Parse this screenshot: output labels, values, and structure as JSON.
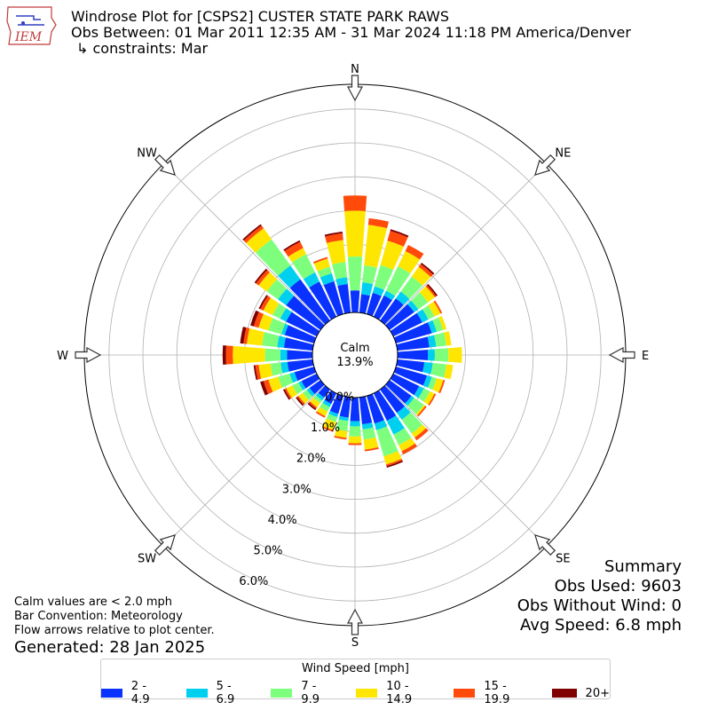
{
  "header": {
    "title": "Windrose Plot for [CSPS2] CUSTER STATE PARK RAWS",
    "subtitle": "Obs Between: 01 Mar 2011 12:35 AM - 31 Mar 2024 11:18 PM America/Denver",
    "constraints": "↳ constraints: Mar",
    "logo_text": "IEM"
  },
  "notes": {
    "calm_note": "Calm values are < 2.0 mph",
    "bar_convention": "Bar Convention: Meteorology",
    "flow_arrows": "Flow arrows relative to plot center.",
    "generated": "Generated: 28 Jan 2025"
  },
  "summary": {
    "heading": "Summary",
    "obs_used": "Obs Used: 9603",
    "obs_without_wind": "Obs Without Wind: 0",
    "avg_speed": "Avg Speed: 6.8 mph"
  },
  "legend": {
    "title": "Wind Speed [mph]"
  },
  "colors": {
    "2-4.9": "#0a32ff",
    "5-6.9": "#00d0f0",
    "7-9.9": "#7dff7d",
    "10-14.9": "#ffe600",
    "15-19.9": "#ff4a0a",
    "20+": "#800000",
    "grid": "#b0b0b0"
  },
  "chart_data": {
    "type": "windrose",
    "calm_label": "Calm",
    "calm_value": "13.9%",
    "radial_tick_labels": [
      "0.0%",
      "1.0%",
      "2.0%",
      "3.0%",
      "4.0%",
      "5.0%",
      "6.0%"
    ],
    "radial_ticks": [
      0,
      1,
      2,
      3,
      4,
      5,
      6
    ],
    "compass_labels": [
      {
        "label": "N",
        "angle": 0
      },
      {
        "label": "NE",
        "angle": 45
      },
      {
        "label": "E",
        "angle": 90
      },
      {
        "label": "SE",
        "angle": 135
      },
      {
        "label": "S",
        "angle": 180
      },
      {
        "label": "SW",
        "angle": 225
      },
      {
        "label": "W",
        "angle": 270
      },
      {
        "label": "NW",
        "angle": 315
      }
    ],
    "speed_bins": [
      "2 - 4.9",
      "5 - 6.9",
      "7 - 9.9",
      "10 - 14.9",
      "15 - 19.9",
      "20+"
    ],
    "unit": "%",
    "directions": [
      0,
      10,
      20,
      30,
      40,
      50,
      60,
      70,
      80,
      90,
      100,
      110,
      120,
      130,
      140,
      150,
      160,
      170,
      180,
      190,
      200,
      210,
      220,
      230,
      240,
      250,
      260,
      270,
      280,
      290,
      300,
      310,
      320,
      330,
      340,
      350
    ],
    "cumulative": [
      [
        0.65,
        0.65,
        1.65,
        3.0,
        3.45,
        3.45
      ],
      [
        0.55,
        0.9,
        1.4,
        2.6,
        2.8,
        2.8
      ],
      [
        0.65,
        0.85,
        1.5,
        2.25,
        2.55,
        2.6
      ],
      [
        0.7,
        0.85,
        1.65,
        2.15,
        2.35,
        2.35
      ],
      [
        0.8,
        1.05,
        1.6,
        1.95,
        2.05,
        2.1
      ],
      [
        0.9,
        1.05,
        1.4,
        1.65,
        1.7,
        1.75
      ],
      [
        0.95,
        1.15,
        1.35,
        1.55,
        1.6,
        1.6
      ],
      [
        1.1,
        1.25,
        1.45,
        1.55,
        1.55,
        1.55
      ],
      [
        0.95,
        1.15,
        1.45,
        1.6,
        1.6,
        1.6
      ],
      [
        0.9,
        1.1,
        1.5,
        1.9,
        1.9,
        1.9
      ],
      [
        0.8,
        1.05,
        1.45,
        1.65,
        1.65,
        1.65
      ],
      [
        0.95,
        1.1,
        1.25,
        1.45,
        1.5,
        1.5
      ],
      [
        0.85,
        1.0,
        1.2,
        1.35,
        1.4,
        1.4
      ],
      [
        0.8,
        0.9,
        1.25,
        1.3,
        1.35,
        1.35
      ],
      [
        0.85,
        1.1,
        1.6,
        1.75,
        1.85,
        1.85
      ],
      [
        0.9,
        1.35,
        1.7,
        1.9,
        2.0,
        2.0
      ],
      [
        0.85,
        1.05,
        1.85,
        2.1,
        2.15,
        2.2
      ],
      [
        0.8,
        0.95,
        1.25,
        1.55,
        1.6,
        1.6
      ],
      [
        0.7,
        0.85,
        1.15,
        1.35,
        1.4,
        1.4
      ],
      [
        0.6,
        0.7,
        1.0,
        1.2,
        1.25,
        1.25
      ],
      [
        0.55,
        0.65,
        0.8,
        1.05,
        1.1,
        1.1
      ],
      [
        0.35,
        0.45,
        0.6,
        0.75,
        0.8,
        0.8
      ],
      [
        0.3,
        0.4,
        0.5,
        0.65,
        0.7,
        0.75
      ],
      [
        0.4,
        0.5,
        0.65,
        0.8,
        0.85,
        0.9
      ],
      [
        0.5,
        0.6,
        0.8,
        1.0,
        1.05,
        1.1
      ],
      [
        0.6,
        0.75,
        1.1,
        1.4,
        1.55,
        1.65
      ],
      [
        0.75,
        0.95,
        1.25,
        1.6,
        1.7,
        1.75
      ],
      [
        0.75,
        0.95,
        1.4,
        2.35,
        2.55,
        2.65
      ],
      [
        0.85,
        1.05,
        1.5,
        1.95,
        2.05,
        2.15
      ],
      [
        0.9,
        1.0,
        1.4,
        1.7,
        1.85,
        1.95
      ],
      [
        1.0,
        1.2,
        1.45,
        1.75,
        1.85,
        1.9
      ],
      [
        1.25,
        1.55,
        1.95,
        2.25,
        2.35,
        2.4
      ],
      [
        1.5,
        2.0,
        2.95,
        3.35,
        3.45,
        3.5
      ],
      [
        1.15,
        1.45,
        2.05,
        2.25,
        2.45,
        2.5
      ],
      [
        1.0,
        1.25,
        1.45,
        1.7,
        1.75,
        1.75
      ],
      [
        0.85,
        1.05,
        1.5,
        2.15,
        2.35,
        2.4
      ]
    ]
  }
}
